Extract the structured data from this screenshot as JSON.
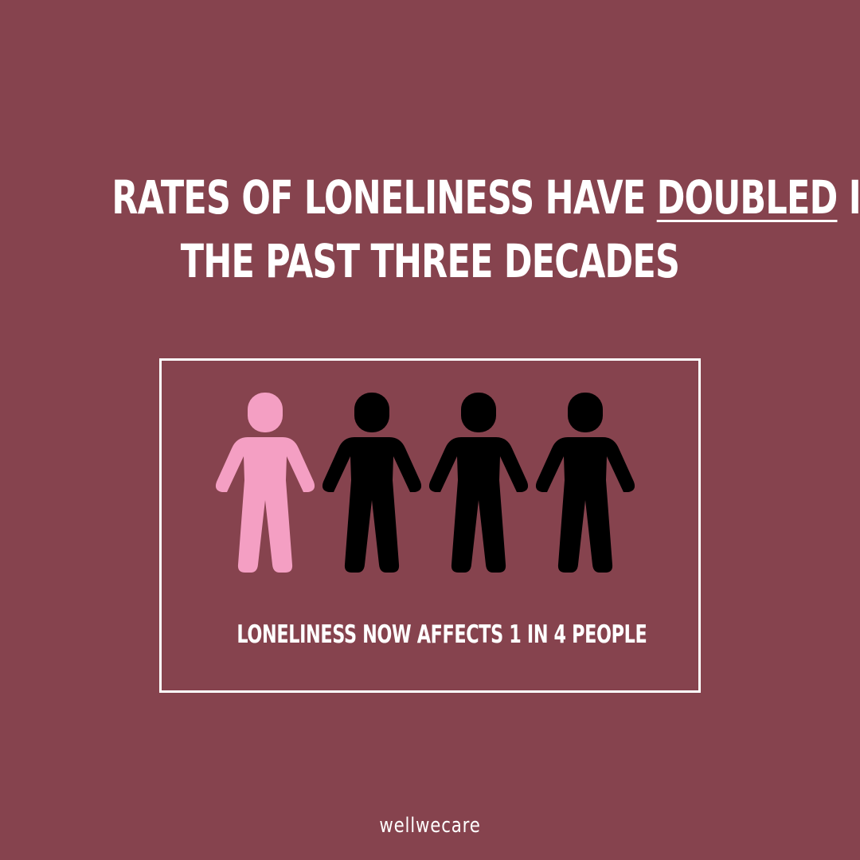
{
  "headline": {
    "before": "RATES OF LONELINESS HAVE",
    "emphasis": "DOUBLED",
    "after": "IN",
    "line2": "THE PAST THREE DECADES"
  },
  "stat": {
    "caption": "LONELINESS NOW AFFECTS 1 IN 4 PEOPLE",
    "affected": 1,
    "total": 4
  },
  "colors": {
    "background": "#86434e",
    "highlight_person": "#f49fc3",
    "other_person": "#000000",
    "text": "#ffffff"
  },
  "icons": [
    "person-icon"
  ],
  "brand": "wellwecare"
}
